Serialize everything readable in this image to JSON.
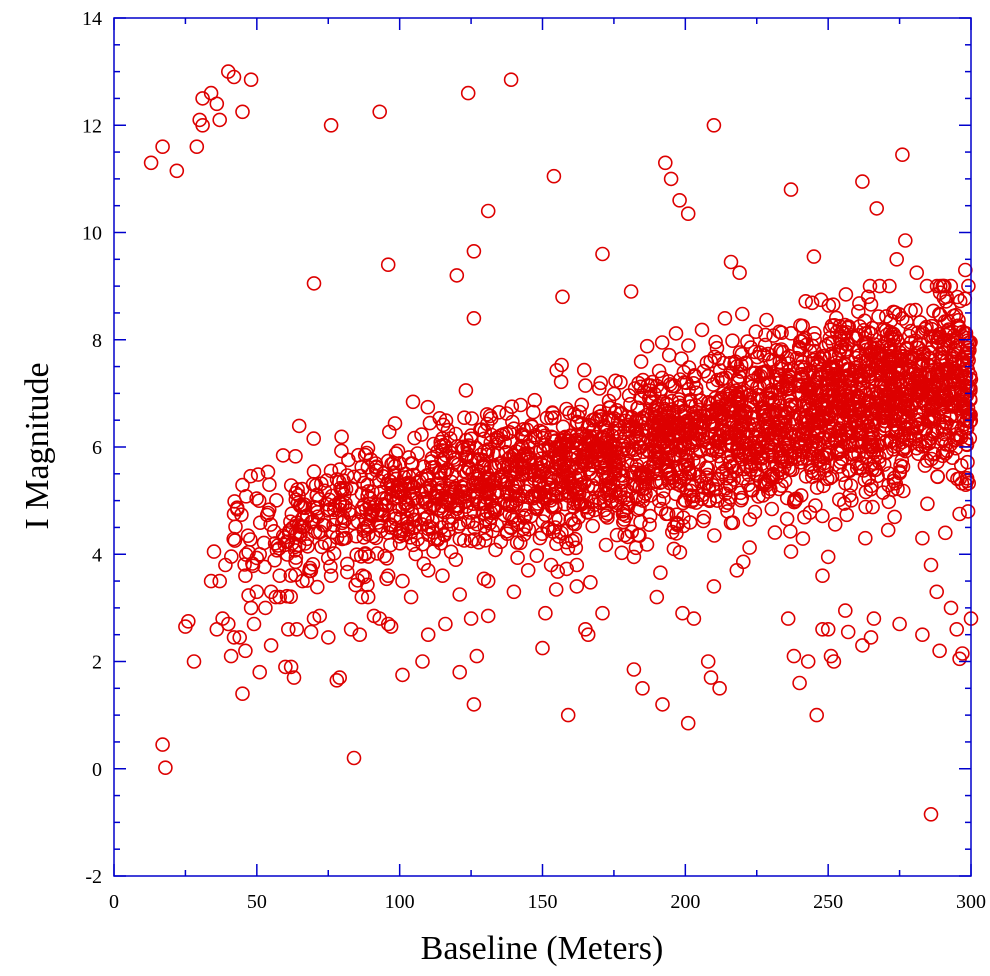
{
  "chart_data": {
    "type": "scatter",
    "title": "",
    "xlabel": "Baseline (Meters)",
    "ylabel": "I Magnitude",
    "xlim": [
      0,
      300
    ],
    "ylim": [
      -2,
      14
    ],
    "x_ticks": [
      0,
      50,
      100,
      150,
      200,
      250,
      300
    ],
    "y_ticks": [
      -2,
      0,
      2,
      4,
      6,
      8,
      10,
      12,
      14
    ],
    "x_tick_labels": [
      "0",
      "50",
      "100",
      "150",
      "200",
      "250",
      "300"
    ],
    "y_tick_labels": [
      "-2",
      "0",
      "2",
      "4",
      "6",
      "8",
      "10",
      "12",
      "14"
    ],
    "grid": false,
    "legend": "none",
    "marker": "open-circle",
    "colors": {
      "marker": "#dd0000",
      "axis": "#0000cc",
      "text": "#000000"
    },
    "dense_trend": {
      "x": [
        40,
        300
      ],
      "y_center_start": 4.3,
      "y_center_end": 7.3,
      "y_spread": 0.75,
      "point_count": 3000
    },
    "series": [
      {
        "values_xy": [
          [
            13,
            11.3
          ],
          [
            17,
            11.6
          ],
          [
            22,
            11.15
          ],
          [
            29,
            11.6
          ],
          [
            30,
            12.1
          ],
          [
            31,
            12.0
          ],
          [
            31,
            12.5
          ],
          [
            34,
            12.6
          ],
          [
            36,
            12.4
          ],
          [
            37,
            12.1
          ],
          [
            40,
            13.0
          ],
          [
            42,
            12.9
          ],
          [
            45,
            12.25
          ],
          [
            48,
            12.85
          ],
          [
            76,
            12.0
          ],
          [
            93,
            12.25
          ],
          [
            124,
            12.6
          ],
          [
            139,
            12.85
          ],
          [
            210,
            12.0
          ],
          [
            276,
            11.45
          ],
          [
            154,
            11.05
          ],
          [
            193,
            11.3
          ],
          [
            195,
            11.0
          ],
          [
            198,
            10.6
          ],
          [
            201,
            10.35
          ],
          [
            131,
            10.4
          ],
          [
            262,
            10.95
          ],
          [
            267,
            10.45
          ],
          [
            237,
            10.8
          ],
          [
            277,
            9.85
          ],
          [
            126,
            9.65
          ],
          [
            120,
            9.2
          ],
          [
            96,
            9.4
          ],
          [
            70,
            9.05
          ],
          [
            171,
            9.6
          ],
          [
            216,
            9.45
          ],
          [
            219,
            9.25
          ],
          [
            245,
            9.55
          ],
          [
            274,
            9.5
          ],
          [
            281,
            9.25
          ],
          [
            298,
            9.3
          ],
          [
            157,
            8.8
          ],
          [
            126,
            8.4
          ],
          [
            181,
            8.9
          ],
          [
            264,
            8.8
          ],
          [
            17,
            0.45
          ],
          [
            18,
            0.02
          ],
          [
            84,
            0.2
          ],
          [
            159,
            1.0
          ],
          [
            201,
            0.85
          ],
          [
            246,
            1.0
          ],
          [
            286,
            -0.85
          ],
          [
            25,
            2.65
          ],
          [
            26,
            2.75
          ],
          [
            28,
            2.0
          ],
          [
            34,
            3.5
          ],
          [
            35,
            4.05
          ],
          [
            36,
            2.6
          ],
          [
            37,
            3.5
          ],
          [
            38,
            2.8
          ],
          [
            39,
            3.8
          ],
          [
            40,
            2.7
          ],
          [
            41,
            2.1
          ],
          [
            42,
            2.45
          ],
          [
            42,
            4.75
          ],
          [
            44,
            2.45
          ],
          [
            45,
            1.4
          ],
          [
            46,
            2.2
          ],
          [
            46,
            3.6
          ],
          [
            48,
            3.0
          ],
          [
            49,
            2.7
          ],
          [
            50,
            3.3
          ],
          [
            51,
            1.8
          ],
          [
            53,
            3.0
          ],
          [
            55,
            2.3
          ],
          [
            58,
            3.2
          ],
          [
            60,
            1.9
          ],
          [
            61,
            2.6
          ],
          [
            62,
            1.9
          ],
          [
            63,
            1.7
          ],
          [
            64,
            2.6
          ],
          [
            69,
            2.55
          ],
          [
            70,
            2.8
          ],
          [
            72,
            2.85
          ],
          [
            75,
            2.45
          ],
          [
            78,
            1.65
          ],
          [
            79,
            1.7
          ],
          [
            83,
            2.6
          ],
          [
            86,
            2.5
          ],
          [
            89,
            3.2
          ],
          [
            91,
            2.85
          ],
          [
            93,
            2.8
          ],
          [
            96,
            2.7
          ],
          [
            97,
            2.65
          ],
          [
            101,
            1.75
          ],
          [
            104,
            3.2
          ],
          [
            108,
            2.0
          ],
          [
            110,
            2.5
          ],
          [
            116,
            2.7
          ],
          [
            121,
            1.8
          ],
          [
            125,
            2.8
          ],
          [
            126,
            1.2
          ],
          [
            127,
            2.1
          ],
          [
            131,
            2.85
          ],
          [
            145,
            3.7
          ],
          [
            150,
            2.25
          ],
          [
            151,
            2.9
          ],
          [
            153,
            3.8
          ],
          [
            162,
            3.4
          ],
          [
            165,
            2.6
          ],
          [
            166,
            2.5
          ],
          [
            171,
            2.9
          ],
          [
            182,
            1.85
          ],
          [
            185,
            1.5
          ],
          [
            190,
            3.2
          ],
          [
            192,
            1.2
          ],
          [
            199,
            2.9
          ],
          [
            203,
            2.8
          ],
          [
            208,
            2.0
          ],
          [
            209,
            1.7
          ],
          [
            210,
            3.4
          ],
          [
            212,
            1.5
          ],
          [
            236,
            2.8
          ],
          [
            238,
            2.1
          ],
          [
            240,
            1.6
          ],
          [
            243,
            2.0
          ],
          [
            248,
            2.6
          ],
          [
            250,
            2.6
          ],
          [
            251,
            2.1
          ],
          [
            252,
            2.0
          ],
          [
            256,
            2.95
          ],
          [
            257,
            2.55
          ],
          [
            262,
            2.3
          ],
          [
            265,
            2.45
          ],
          [
            266,
            2.8
          ],
          [
            275,
            2.7
          ],
          [
            283,
            2.5
          ],
          [
            286,
            3.8
          ],
          [
            288,
            3.3
          ],
          [
            289,
            2.2
          ],
          [
            293,
            3.0
          ],
          [
            295,
            2.6
          ],
          [
            296,
            2.05
          ],
          [
            297,
            2.15
          ],
          [
            300,
            2.8
          ],
          [
            248,
            3.6
          ],
          [
            250,
            3.95
          ],
          [
            237,
            4.05
          ],
          [
            218,
            3.7
          ],
          [
            196,
            4.1
          ],
          [
            182,
            3.95
          ],
          [
            162,
            3.8
          ],
          [
            140,
            3.3
          ],
          [
            131,
            3.5
          ],
          [
            121,
            3.25
          ],
          [
            115,
            3.6
          ],
          [
            110,
            3.7
          ],
          [
            101,
            3.5
          ],
          [
            96,
            3.6
          ],
          [
            87,
            3.6
          ],
          [
            76,
            3.6
          ],
          [
            66,
            3.5
          ],
          [
            58,
            3.6
          ],
          [
            51,
            4.0
          ],
          [
            55,
            3.3
          ],
          [
            271,
            4.45
          ],
          [
            263,
            4.3
          ],
          [
            283,
            4.3
          ],
          [
            291,
            4.4
          ],
          [
            296,
            4.75
          ],
          [
            299,
            4.8
          ]
        ]
      }
    ]
  }
}
